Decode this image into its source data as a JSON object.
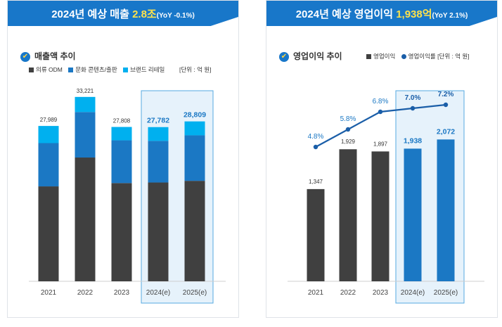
{
  "left": {
    "banner": {
      "prefix": "2024년 예상 매출 ",
      "highlight": "2.8조",
      "yoy": "(YoY -0.1%)"
    },
    "subtitle": "매출액 추이",
    "unit": "[단위 : 억 원]",
    "colors": {
      "odm": "#404040",
      "culture": "#1b78c4",
      "brand": "#00b0ef",
      "highlight_bg": "#e6f2fb",
      "highlight_border": "#55a9e0"
    }
  },
  "right": {
    "banner": {
      "prefix": "2024년 예상 영업이익 ",
      "highlight": "1,938억",
      "yoy": "(YoY 2.1%)"
    },
    "subtitle": "영업이익 추이",
    "unit": "[단위 : 억 원]",
    "colors": {
      "bar_actual": "#404040",
      "bar_estimate": "#1b78c4",
      "line": "#1a5ea8"
    }
  },
  "chart_data": [
    {
      "type": "bar",
      "stacked": true,
      "categories": [
        "2021",
        "2022",
        "2023",
        "2024(e)",
        "2025(e)"
      ],
      "series": [
        {
          "name": "의류 ODM",
          "values": [
            17100,
            22300,
            17700,
            17800,
            18100
          ]
        },
        {
          "name": "문화 콘텐츠/출판",
          "values": [
            7800,
            8200,
            7700,
            7500,
            8200
          ]
        },
        {
          "name": "브랜드 리테일",
          "values": [
            3089,
            2721,
            2408,
            2482,
            2509
          ]
        }
      ],
      "totals": [
        27989,
        33221,
        27808,
        27782,
        28809
      ],
      "total_labels": [
        "27,989",
        "33,221",
        "27,808",
        "27,782",
        "28,809"
      ],
      "estimate_from_index": 3,
      "ylim": [
        0,
        37000
      ],
      "grid": false,
      "legend": "top-left"
    },
    {
      "type": "bar",
      "categories": [
        "2021",
        "2022",
        "2023",
        "2024(e)",
        "2025(e)"
      ],
      "series": [
        {
          "name": "영업이익",
          "values": [
            1347,
            1929,
            1897,
            1938,
            2072
          ]
        },
        {
          "name": "영업이익률",
          "type": "line",
          "values": [
            4.8,
            5.8,
            6.8,
            7.0,
            7.2
          ]
        }
      ],
      "bar_labels": [
        "1,347",
        "1,929",
        "1,897",
        "1,938",
        "2,072"
      ],
      "line_labels": [
        "4.8%",
        "5.8%",
        "6.8%",
        "7.0%",
        "7.2%"
      ],
      "estimate_from_index": 3,
      "ylim": [
        0,
        3000
      ],
      "grid": false,
      "legend": "top-right"
    }
  ]
}
